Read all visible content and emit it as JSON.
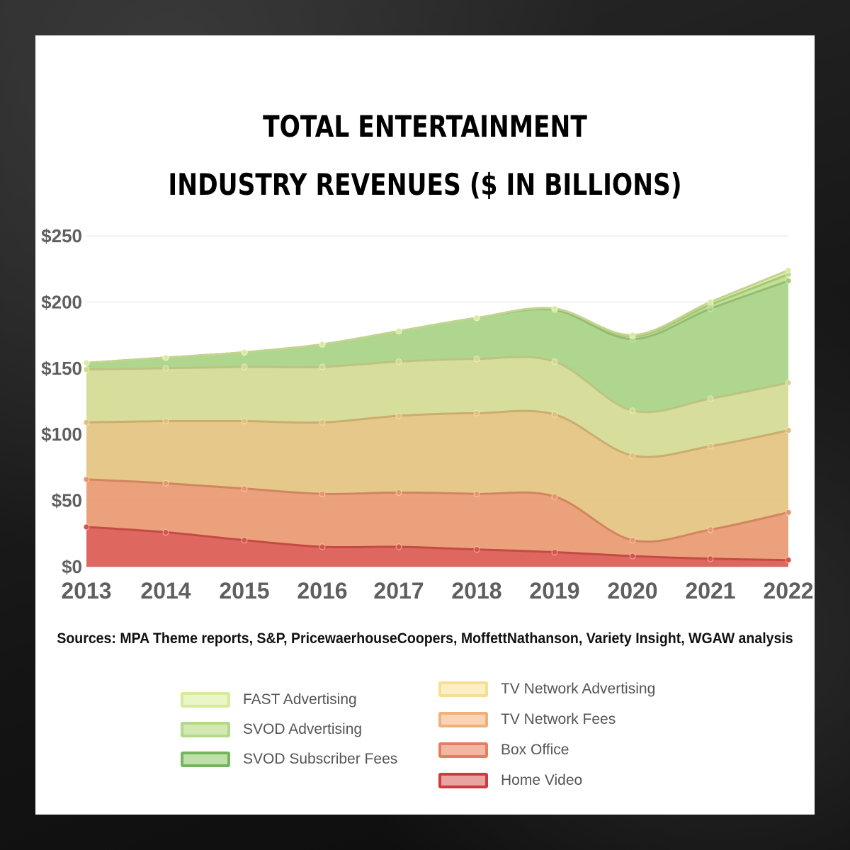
{
  "title": {
    "line1": "TOTAL ENTERTAINMENT",
    "line2": "INDUSTRY REVENUES ($ IN BILLIONS)"
  },
  "sources": "Sources: MPA Theme reports, S&P, PricewaerhouseCoopers, MoffettNathanson, Variety Insight, WGAW analysis",
  "chart_data": {
    "type": "area",
    "stacked": true,
    "title": "TOTAL ENTERTAINMENT INDUSTRY REVENUES ($ IN BILLIONS)",
    "xlabel": "",
    "ylabel": "",
    "ylim": [
      0,
      250
    ],
    "yticks": [
      0,
      50,
      100,
      150,
      200,
      250
    ],
    "ytick_labels": [
      "$0",
      "$50",
      "$100",
      "$150",
      "$200",
      "$250"
    ],
    "grid": true,
    "legend_position": "bottom",
    "categories": [
      "2013",
      "2014",
      "2015",
      "2016",
      "2017",
      "2018",
      "2019",
      "2020",
      "2021",
      "2022"
    ],
    "series": [
      {
        "name": "Home Video",
        "color": "#d9534a",
        "values": [
          30,
          26,
          20,
          15,
          15,
          13,
          11,
          8,
          6,
          5
        ]
      },
      {
        "name": "Box Office",
        "color": "#e8956a",
        "values": [
          36,
          37,
          39,
          40,
          41,
          42,
          42,
          12,
          22,
          36
        ]
      },
      {
        "name": "TV Network Fees",
        "color": "#e2c07a",
        "values": [
          43,
          47,
          51,
          54,
          58,
          61,
          62,
          64,
          63,
          62
        ]
      },
      {
        "name": "TV Network Advertising",
        "color": "#d2d98e",
        "values": [
          40,
          40,
          41,
          42,
          41,
          41,
          40,
          34,
          36,
          36
        ]
      },
      {
        "name": "SVOD Subscriber Fees",
        "color": "#a4d07e",
        "values": [
          5,
          8,
          11,
          17,
          23,
          31,
          39,
          54,
          68,
          77
        ]
      },
      {
        "name": "SVOD Advertising",
        "color": "#b9dd86",
        "values": [
          0,
          0,
          0,
          0,
          0,
          0,
          1,
          2,
          3,
          5
        ]
      },
      {
        "name": "FAST Advertising",
        "color": "#d9ec9e",
        "values": [
          0,
          0,
          0,
          0,
          0,
          0,
          0,
          1,
          2,
          3
        ]
      }
    ]
  },
  "legend": {
    "left": [
      {
        "label": "FAST Advertising",
        "fill": "#eaf5c8",
        "stroke": "#d6ea9a"
      },
      {
        "label": "SVOD Advertising",
        "fill": "#d3e9b2",
        "stroke": "#b3d888"
      },
      {
        "label": "SVOD Subscriber Fees",
        "fill": "#bfe0a6",
        "stroke": "#74b560"
      }
    ],
    "right": [
      {
        "label": "TV Network Advertising",
        "fill": "#fcefc4",
        "stroke": "#f6df90"
      },
      {
        "label": "TV Network Fees",
        "fill": "#fad4b2",
        "stroke": "#f0b07a"
      },
      {
        "label": "Box Office",
        "fill": "#f3b6a2",
        "stroke": "#e87e60"
      },
      {
        "label": "Home Video",
        "fill": "#e9a3a3",
        "stroke": "#cc3c3c"
      }
    ]
  }
}
